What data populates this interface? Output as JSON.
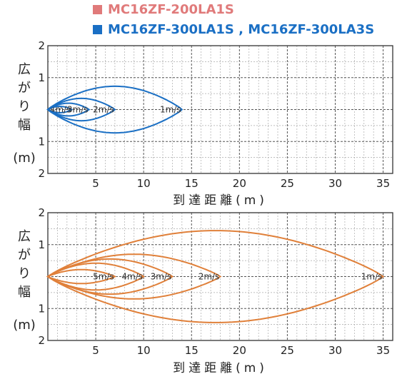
{
  "legend": [
    {
      "label": "MC16ZF-200LA1S",
      "color": "#e07a7a"
    },
    {
      "label": "MC16ZF-300LA1S , MC16ZF-300LA3S",
      "color": "#1a6fc4"
    }
  ],
  "chart_data": [
    {
      "type": "line",
      "ylabel": [
        "広",
        "が",
        "り",
        "幅",
        "(m)"
      ],
      "xlabel": "到達距離(m)",
      "xlim": [
        0,
        36
      ],
      "ylim": [
        -2,
        2
      ],
      "x_ticks": [
        5,
        10,
        15,
        20,
        25,
        30,
        35
      ],
      "y_ticks": [
        "2",
        "1",
        "",
        "1",
        "2"
      ],
      "grid": true,
      "color": "#1a6fc4",
      "series": [
        {
          "name": "4m/s",
          "range": 2.5,
          "half_width": 0.1
        },
        {
          "name": "3m/s",
          "range": 4.3,
          "half_width": 0.2
        },
        {
          "name": "2m/s",
          "range": 7.0,
          "half_width": 0.35
        },
        {
          "name": "1m/s",
          "range": 14.0,
          "half_width": 0.73
        }
      ]
    },
    {
      "type": "line",
      "ylabel": [
        "広",
        "が",
        "り",
        "幅",
        "(m)"
      ],
      "xlabel": "到達距離(m)",
      "xlim": [
        0,
        36
      ],
      "ylim": [
        -2,
        2
      ],
      "x_ticks": [
        5,
        10,
        15,
        20,
        25,
        30,
        35
      ],
      "y_ticks": [
        "2",
        "1",
        "",
        "1",
        "2"
      ],
      "grid": true,
      "color": "#e0803a",
      "series": [
        {
          "name": "5m/s",
          "range": 7.0,
          "half_width": 0.22
        },
        {
          "name": "4m/s",
          "range": 10.0,
          "half_width": 0.42
        },
        {
          "name": "3m/s",
          "range": 13.0,
          "half_width": 0.55
        },
        {
          "name": "2m/s",
          "range": 18.0,
          "half_width": 0.7
        },
        {
          "name": "1m/s",
          "range": 35.0,
          "half_width": 1.44
        }
      ]
    }
  ]
}
